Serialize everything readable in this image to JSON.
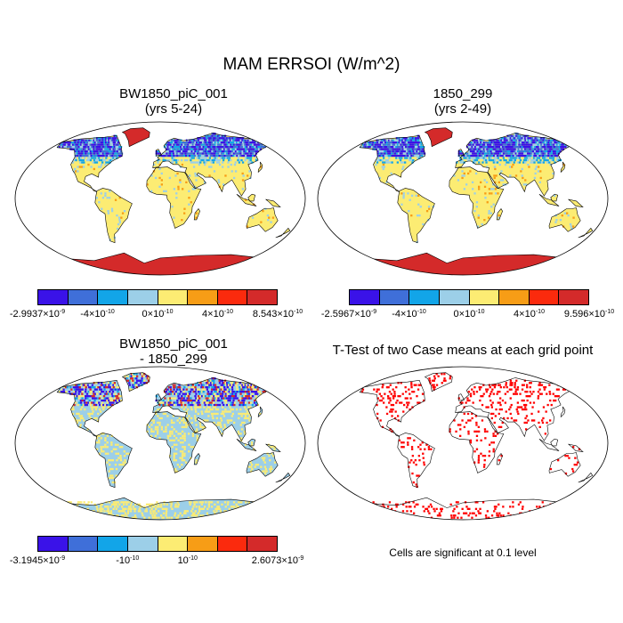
{
  "title": "MAM ERRSOI (W/m^2)",
  "panels": [
    {
      "id": "a",
      "title_line1": "BW1850_piC_001",
      "title_line2": "(yrs 5-24)",
      "field": "anomaly",
      "colorbar": {
        "colors": [
          "#3a12e8",
          "#3f6fd9",
          "#12a5e8",
          "#9ccfe8",
          "#fcec73",
          "#f79d16",
          "#fb2a0d",
          "#d42a2a"
        ],
        "labels": [
          {
            "mant": "-2.9937",
            "base": "10",
            "exp": "-9"
          },
          {
            "mant": "-4",
            "base": "10",
            "exp": "-10"
          },
          {
            "mant": "0",
            "base": "10",
            "exp": "-10"
          },
          {
            "mant": "4",
            "base": "10",
            "exp": "-10"
          },
          {
            "mant": "8.543",
            "base": "10",
            "exp": "-10"
          }
        ]
      }
    },
    {
      "id": "b",
      "title_line1": "1850_299",
      "title_line2": "(yrs 2-49)",
      "field": "anomaly",
      "colorbar": {
        "colors": [
          "#3a12e8",
          "#3f6fd9",
          "#12a5e8",
          "#9ccfe8",
          "#fcec73",
          "#f79d16",
          "#fb2a0d",
          "#d42a2a"
        ],
        "labels": [
          {
            "mant": "-2.5967",
            "base": "10",
            "exp": "-9"
          },
          {
            "mant": "-4",
            "base": "10",
            "exp": "-10"
          },
          {
            "mant": "0",
            "base": "10",
            "exp": "-10"
          },
          {
            "mant": "4",
            "base": "10",
            "exp": "-10"
          },
          {
            "mant": "9.596",
            "base": "10",
            "exp": "-10"
          }
        ]
      }
    },
    {
      "id": "c",
      "title_line1": "BW1850_piC_001",
      "title_line2": "- 1850_299",
      "field": "difference",
      "colorbar": {
        "colors": [
          "#3a12e8",
          "#3f6fd9",
          "#12a5e8",
          "#9ccfe8",
          "#fcec73",
          "#f79d16",
          "#fb2a0d",
          "#d42a2a"
        ],
        "labels": [
          {
            "mant": "-3.1945",
            "base": "10",
            "exp": "-9"
          },
          {
            "mant": "-",
            "base": "10",
            "exp": "-10"
          },
          {
            "mant": "",
            "base": "10",
            "exp": "-10"
          },
          {
            "mant": "2.6073",
            "base": "10",
            "exp": "-9"
          }
        ]
      }
    },
    {
      "id": "d",
      "title_line1": "T-Test of two Case means at each grid point",
      "title_line2": "",
      "field": "ttest",
      "note": "Cells are significant at 0.1 level"
    }
  ],
  "colors": {
    "land_warm": "#fcec73",
    "land_light": "#9ccfe8",
    "antarctica": "#d42a2a",
    "signif": "#ff0000"
  }
}
